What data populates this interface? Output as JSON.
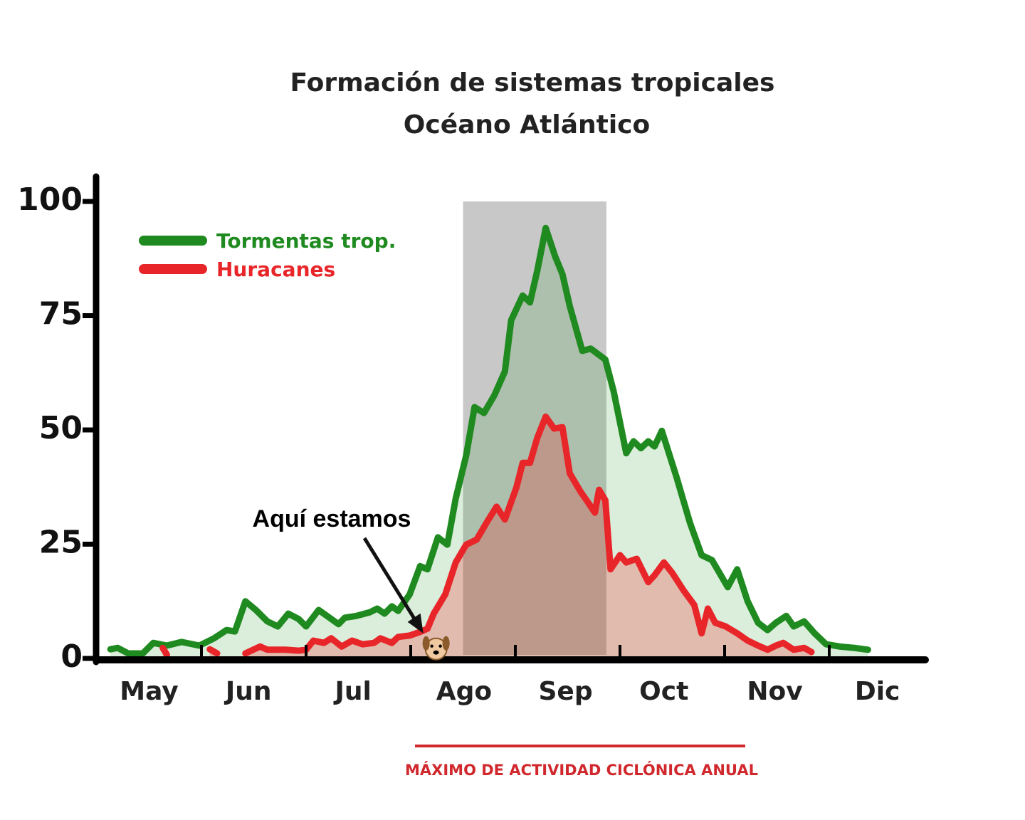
{
  "chart_data": {
    "type": "line",
    "title": "Formación de sistemas tropicales",
    "subtitle": "Océano Atlántico",
    "footer": "MÁXIMO DE ACTIVIDAD CICLÓNICA ANUAL",
    "xlim": [
      0,
      8
    ],
    "ylim": [
      0,
      100
    ],
    "yticks": [
      0,
      25,
      50,
      75,
      100
    ],
    "xticks": [
      {
        "value": 0.5,
        "label": "May"
      },
      {
        "value": 1.45,
        "label": "Jun"
      },
      {
        "value": 2.45,
        "label": "Jul"
      },
      {
        "value": 3.51,
        "label": "Ago"
      },
      {
        "value": 4.48,
        "label": "Sep"
      },
      {
        "value": 5.42,
        "label": "Oct"
      },
      {
        "value": 6.48,
        "label": "Nov"
      },
      {
        "value": 7.46,
        "label": "Dic"
      }
    ],
    "month_edges": [
      1,
      2,
      3,
      4,
      5,
      6,
      7
    ],
    "shade": {
      "x": [
        3.5,
        4.87
      ],
      "color": "#c8c8c8"
    },
    "legend": "top-left",
    "annotation": {
      "text": "Aquí estamos",
      "x": 3.12,
      "y": 5.5
    },
    "series": [
      {
        "name": "Tormentas trop.",
        "color": "#1f8a1f",
        "fill": "rgba(40,150,40,0.17)",
        "x": [
          0.13,
          0.2,
          0.3,
          0.44,
          0.54,
          0.67,
          0.81,
          0.98,
          1.12,
          1.24,
          1.32,
          1.42,
          1.52,
          1.63,
          1.73,
          1.83,
          1.93,
          2.0,
          2.12,
          2.2,
          2.31,
          2.37,
          2.48,
          2.61,
          2.68,
          2.75,
          2.82,
          2.88,
          2.99,
          3.09,
          3.16,
          3.26,
          3.35,
          3.43,
          3.53,
          3.61,
          3.7,
          3.8,
          3.9,
          3.96,
          4.07,
          4.14,
          4.21,
          4.29,
          4.38,
          4.45,
          4.52,
          4.64,
          4.72,
          4.86,
          4.94,
          5.06,
          5.13,
          5.2,
          5.27,
          5.33,
          5.4,
          5.54,
          5.67,
          5.78,
          5.88,
          6.03,
          6.12,
          6.22,
          6.32,
          6.41,
          6.49,
          6.59,
          6.66,
          6.76,
          6.86,
          6.97,
          7.1,
          7.24,
          7.37
        ],
        "values": [
          2.0,
          2.3,
          1.1,
          1.1,
          3.4,
          2.8,
          3.6,
          2.8,
          4.4,
          6.2,
          5.9,
          12.5,
          10.6,
          8.1,
          7.0,
          9.8,
          8.6,
          7.0,
          10.6,
          9.3,
          7.5,
          8.9,
          9.3,
          10.1,
          10.9,
          9.8,
          11.4,
          10.4,
          14.0,
          20.2,
          19.5,
          26.5,
          24.9,
          35.0,
          44.4,
          55.0,
          53.7,
          57.6,
          62.8,
          74.0,
          79.4,
          77.9,
          84.9,
          94.2,
          88.0,
          84.1,
          77.1,
          67.3,
          67.8,
          65.4,
          58.4,
          44.9,
          47.5,
          46.0,
          47.5,
          46.4,
          49.8,
          39.7,
          29.6,
          22.6,
          21.5,
          15.6,
          19.5,
          12.5,
          7.8,
          6.2,
          7.8,
          9.3,
          7.0,
          8.1,
          5.5,
          3.1,
          2.6,
          2.3,
          1.9
        ]
      },
      {
        "name": "Huracanes",
        "color": "#e8262a",
        "fill": "rgba(240,40,40,0.25)",
        "x": [
          0.63,
          0.67,
          0.9,
          1.08,
          1.15,
          1.3,
          1.42,
          1.56,
          1.63,
          1.8,
          1.93,
          2.0,
          2.07,
          2.17,
          2.24,
          2.34,
          2.44,
          2.54,
          2.65,
          2.71,
          2.82,
          2.88,
          2.99,
          3.09,
          3.16,
          3.22,
          3.33,
          3.43,
          3.53,
          3.63,
          3.73,
          3.82,
          3.9,
          4.01,
          4.07,
          4.14,
          4.21,
          4.29,
          4.37,
          4.45,
          4.52,
          4.62,
          4.69,
          4.76,
          4.8,
          4.86,
          4.91,
          5.0,
          5.06,
          5.16,
          5.27,
          5.33,
          5.42,
          5.5,
          5.61,
          5.71,
          5.78,
          5.84,
          5.91,
          6.01,
          6.12,
          6.22,
          6.32,
          6.41,
          6.49,
          6.56,
          6.66,
          6.76,
          6.83
        ],
        "values": [
          2.3,
          0.8,
          null,
          2.0,
          1.1,
          null,
          1.1,
          2.6,
          1.9,
          1.9,
          1.7,
          1.9,
          3.9,
          3.4,
          4.4,
          2.6,
          3.9,
          3.1,
          3.4,
          4.4,
          3.4,
          4.7,
          5.0,
          5.8,
          6.5,
          9.8,
          14.0,
          21.0,
          24.9,
          26.0,
          29.9,
          33.2,
          30.4,
          37.4,
          42.8,
          42.8,
          48.3,
          52.9,
          50.3,
          50.6,
          40.5,
          36.6,
          34.3,
          31.9,
          36.9,
          34.6,
          19.5,
          22.6,
          21.0,
          21.8,
          16.7,
          18.2,
          21.0,
          18.7,
          14.8,
          11.7,
          5.5,
          10.9,
          7.8,
          7.0,
          5.5,
          3.9,
          2.8,
          1.9,
          2.8,
          3.4,
          1.9,
          2.3,
          1.4
        ]
      }
    ]
  }
}
